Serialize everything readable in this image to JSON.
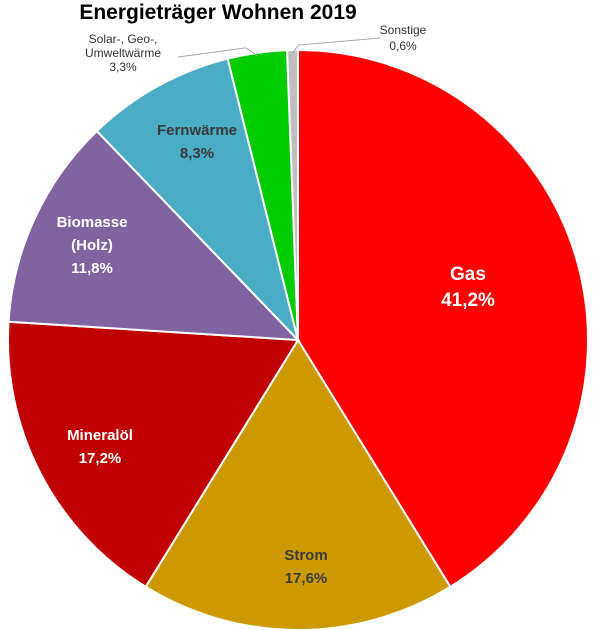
{
  "chart_data": {
    "type": "pie",
    "title": "Energieträger Wohnen 2019",
    "slices": [
      {
        "label": "Gas",
        "value": 41.2,
        "value_label": "41,2%",
        "color": "#ff0000",
        "text_color": "#ffffff"
      },
      {
        "label": "Strom",
        "value": 17.6,
        "value_label": "17,6%",
        "color": "#cc9900",
        "text_color": "#3a3a3a"
      },
      {
        "label": "Mineralöl",
        "value": 17.2,
        "value_label": "17,2%",
        "color": "#c00000",
        "text_color": "#ffffff"
      },
      {
        "label": "Biomasse (Holz)",
        "value": 11.8,
        "value_label": "11,8%",
        "color": "#8064a2",
        "text_color": "#ffffff"
      },
      {
        "label": "Fernwärme",
        "value": 8.3,
        "value_label": "8,3%",
        "color": "#4bacc6",
        "text_color": "#3a3a3a"
      },
      {
        "label": "Solar-, Geo-, Umweltwärme",
        "value": 3.3,
        "value_label": "3,3%",
        "color": "#00cc00",
        "text_color": "#333333"
      },
      {
        "label": "Sonstige",
        "value": 0.6,
        "value_label": "0,6%",
        "color": "#bfbfbf",
        "text_color": "#333333"
      }
    ],
    "legend": "none",
    "start_angle": "top, clockwise"
  }
}
